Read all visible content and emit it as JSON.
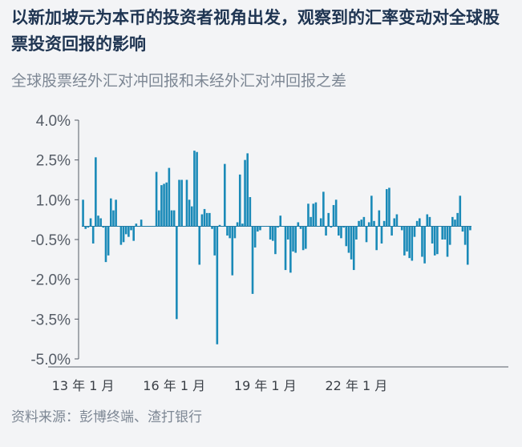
{
  "title": "以新加坡元为本币的投资者视角出发，观察到的汇率变动对全球股票投资回报的影响",
  "subtitle": "全球股票经外汇对冲回报和未经外汇对冲回报之差",
  "source": "资料来源：彭博终端、渣打银行",
  "colors": {
    "bar": "#1a8ab8",
    "axis": "#555c66",
    "title": "#1f3552",
    "subtitle": "#7d8794"
  },
  "chart_data": {
    "type": "bar",
    "title": "全球股票经外汇对冲回报和未经外汇对冲回报之差",
    "ylabel": "",
    "xlabel": "",
    "ylim": [
      -5.0,
      4.0
    ],
    "yticks": [
      "4.0%",
      "2.5%",
      "1.0%",
      "-0.5%",
      "-2.0%",
      "-3.5%",
      "-5.0%"
    ],
    "ytick_values": [
      4.0,
      2.5,
      1.0,
      -0.5,
      -2.0,
      -3.5,
      -5.0
    ],
    "xticks": [
      "13 年 1 月",
      "16 年 1 月",
      "19 年 1 月",
      "22 年 1 月"
    ],
    "xtick_index": [
      0,
      36,
      72,
      108
    ],
    "start_month": "2013-01",
    "unit": "%",
    "grid": false,
    "values": [
      1.0,
      -0.1,
      -0.05,
      0.3,
      -0.65,
      2.6,
      0.4,
      0.3,
      -0.05,
      -1.35,
      -1.1,
      1.05,
      0.6,
      1.0,
      0.0,
      -0.7,
      -0.6,
      -0.3,
      -0.4,
      -0.15,
      -0.55,
      0.1,
      0.0,
      0.25,
      0.0,
      0.0,
      0.0,
      0.0,
      0.0,
      2.05,
      0.6,
      1.55,
      1.6,
      1.65,
      2.2,
      0.6,
      0.6,
      -3.5,
      1.75,
      1.75,
      0.0,
      1.75,
      1.0,
      0.75,
      2.85,
      2.8,
      -1.45,
      0.45,
      0.65,
      0.5,
      0.5,
      -0.1,
      -1.1,
      -4.45,
      0.05,
      0.0,
      2.35,
      -0.35,
      -0.45,
      -1.85,
      -0.45,
      0.15,
      1.95,
      0.1,
      2.5,
      2.75,
      1.1,
      -2.55,
      -0.8,
      -0.2,
      -0.15,
      0.0,
      0.0,
      0.0,
      -0.5,
      -0.55,
      -1.05,
      -0.05,
      0.4,
      0.0,
      -1.65,
      -0.5,
      -1.75,
      -0.95,
      -1.0,
      0.15,
      -0.1,
      -0.9,
      -0.85,
      0.85,
      0.35,
      0.85,
      0.9,
      0.0,
      0.3,
      1.3,
      -0.35,
      0.5,
      -0.05,
      0.8,
      1.0,
      -0.35,
      -0.45,
      -0.05,
      -0.75,
      -1.0,
      -1.25,
      -1.65,
      -0.5,
      0.2,
      0.25,
      0.35,
      -0.6,
      0.15,
      1.15,
      0.2,
      -0.9,
      0.6,
      -0.65,
      0.2,
      1.4,
      1.45,
      -0.35,
      0.3,
      0.45,
      0.0,
      -0.15,
      -1.1,
      -0.95,
      -1.2,
      -1.3,
      -0.4,
      0.2,
      0.3,
      -1.15,
      -1.4,
      0.45,
      0.35,
      -0.65,
      -1.1,
      -1.05,
      0.0,
      -0.5,
      -0.5,
      -1.15,
      -0.7,
      0.35,
      0.25,
      0.5,
      1.15,
      -0.2,
      -0.7,
      -1.45,
      -0.15
    ]
  }
}
